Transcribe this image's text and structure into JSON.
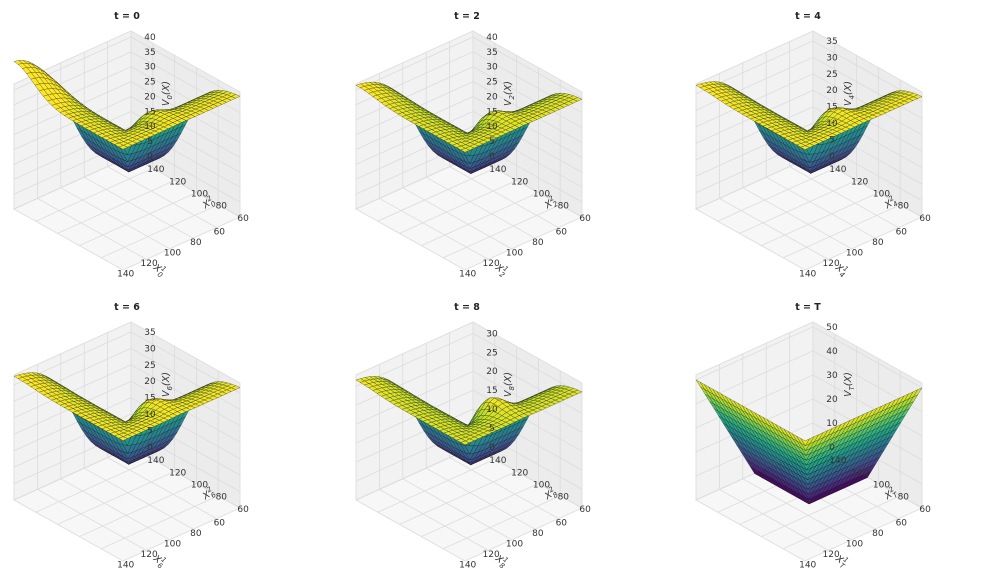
{
  "chart_data": [
    {
      "type": "surface3d",
      "title": "t = 0",
      "xlabel": "X_0^1",
      "ylabel": "X_0^2",
      "zlabel": "V_0(X)",
      "x_ticks": [
        "140",
        "120",
        "100",
        "80",
        "60"
      ],
      "y_ticks": [
        "60",
        "80",
        "100",
        "120",
        "140"
      ],
      "z_ticks": [
        "0",
        "5",
        "10",
        "15",
        "20",
        "25",
        "30",
        "35",
        "40"
      ],
      "xlim": [
        50,
        150
      ],
      "ylim": [
        50,
        150
      ],
      "zlim": [
        0,
        42
      ],
      "surface": {
        "near_max": 41,
        "far_min": 9,
        "floor": 0.5,
        "bump": 3
      },
      "colormap": "viridis"
    },
    {
      "type": "surface3d",
      "title": "t = 2",
      "xlabel": "X_2^1",
      "ylabel": "X_2^2",
      "zlabel": "V_2(X)",
      "x_ticks": [
        "140",
        "120",
        "100",
        "80",
        "60"
      ],
      "y_ticks": [
        "60",
        "80",
        "100",
        "120",
        "140"
      ],
      "z_ticks": [
        "0",
        "5",
        "10",
        "15",
        "20",
        "25",
        "30",
        "35",
        "40"
      ],
      "xlim": [
        50,
        150
      ],
      "ylim": [
        50,
        150
      ],
      "zlim": [
        0,
        42
      ],
      "surface": {
        "near_max": 40,
        "far_min": 2,
        "floor": 0,
        "bump": 4
      },
      "colormap": "viridis"
    },
    {
      "type": "surface3d",
      "title": "t = 4",
      "xlabel": "X_4^1",
      "ylabel": "X_4^2",
      "zlabel": "V_4(X)",
      "x_ticks": [
        "140",
        "120",
        "100",
        "80",
        "60"
      ],
      "y_ticks": [
        "60",
        "80",
        "100",
        "120",
        "140"
      ],
      "z_ticks": [
        "0",
        "5",
        "10",
        "15",
        "20",
        "25",
        "30",
        "35"
      ],
      "xlim": [
        50,
        150
      ],
      "ylim": [
        50,
        150
      ],
      "zlim": [
        0,
        38
      ],
      "surface": {
        "near_max": 37,
        "far_min": 1,
        "floor": 0,
        "bump": 4
      },
      "colormap": "viridis"
    },
    {
      "type": "surface3d",
      "title": "t = 6",
      "xlabel": "X_6^1",
      "ylabel": "X_6^2",
      "zlabel": "V_6(X)",
      "x_ticks": [
        "140",
        "120",
        "100",
        "80",
        "60"
      ],
      "y_ticks": [
        "60",
        "80",
        "100",
        "120",
        "140"
      ],
      "z_ticks": [
        "0",
        "5",
        "10",
        "15",
        "20",
        "25",
        "30",
        "35"
      ],
      "xlim": [
        50,
        150
      ],
      "ylim": [
        50,
        150
      ],
      "zlim": [
        0,
        38
      ],
      "surface": {
        "near_max": 37,
        "far_min": 1,
        "floor": 0,
        "bump": 4
      },
      "colormap": "viridis"
    },
    {
      "type": "surface3d",
      "title": "t = 8",
      "xlabel": "X_8^1",
      "ylabel": "X_8^2",
      "zlabel": "V_8(X)",
      "x_ticks": [
        "140",
        "120",
        "100",
        "80",
        "60"
      ],
      "y_ticks": [
        "60",
        "80",
        "100",
        "120",
        "140"
      ],
      "z_ticks": [
        "0",
        "5",
        "10",
        "15",
        "20",
        "25",
        "30"
      ],
      "xlim": [
        50,
        150
      ],
      "ylim": [
        50,
        150
      ],
      "zlim": [
        0,
        33
      ],
      "surface": {
        "near_max": 31,
        "far_min": 1,
        "floor": 0,
        "bump": 5
      },
      "colormap": "viridis"
    },
    {
      "type": "surface3d",
      "title": "t = T",
      "xlabel": "X_T^1",
      "ylabel": "X_T^2",
      "zlabel": "V_T(X)",
      "x_ticks": [
        "140",
        "120",
        "100",
        "80",
        "60"
      ],
      "y_ticks": [
        "60",
        "80",
        "100",
        "120",
        "140"
      ],
      "z_ticks": [
        "0",
        "10",
        "20",
        "30",
        "40",
        "50"
      ],
      "xlim": [
        50,
        150
      ],
      "ylim": [
        50,
        150
      ],
      "zlim": [
        0,
        52
      ],
      "surface": {
        "payoff": "max(max(X1,X2) - 100, 0)"
      },
      "colormap": "viridis"
    }
  ]
}
